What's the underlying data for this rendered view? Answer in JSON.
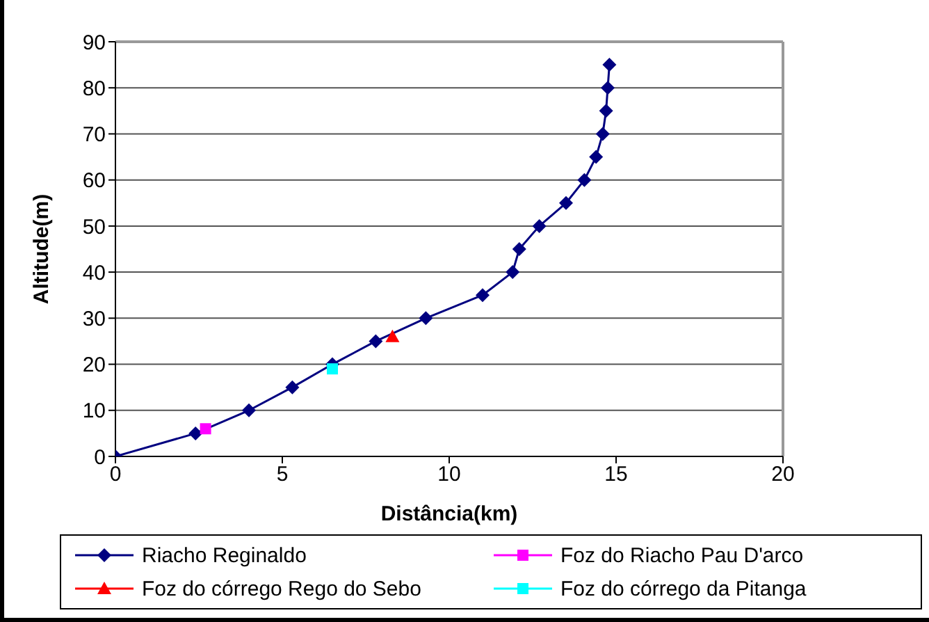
{
  "chart_data": {
    "type": "scatter",
    "xlabel": "Distância(km)",
    "ylabel": "Altitude(m)",
    "xlim": [
      0,
      20
    ],
    "xticks": [
      0,
      5,
      10,
      15,
      20
    ],
    "ylim": [
      0,
      90
    ],
    "yticks": [
      0,
      10,
      20,
      30,
      40,
      50,
      60,
      70,
      80,
      90
    ],
    "grid": "y",
    "legend": "bottom",
    "series": [
      {
        "name": "Riacho Reginaldo",
        "type": "line",
        "marker": "diamond",
        "color": "#000080",
        "x": [
          0,
          2.4,
          4,
          5.3,
          6.5,
          7.8,
          9.3,
          11,
          11.9,
          12.1,
          12.7,
          13.5,
          14.05,
          14.4,
          14.6,
          14.7,
          14.75,
          14.8
        ],
        "values": [
          0,
          5,
          10,
          15,
          20,
          25,
          30,
          35,
          40,
          45,
          50,
          55,
          60,
          65,
          70,
          75,
          80,
          85
        ]
      },
      {
        "name": "Foz do Riacho Pau D'arco",
        "marker": "square",
        "color": "#ff00ff",
        "x": [
          2.7
        ],
        "values": [
          6
        ]
      },
      {
        "name": "Foz do córrego Rego do Sebo",
        "marker": "triangle",
        "color": "#ff0000",
        "x": [
          8.3
        ],
        "values": [
          26
        ]
      },
      {
        "name": "Foz do córrego da Pitanga",
        "marker": "square",
        "color": "#00ffff",
        "x": [
          6.5
        ],
        "values": [
          19
        ]
      }
    ]
  }
}
